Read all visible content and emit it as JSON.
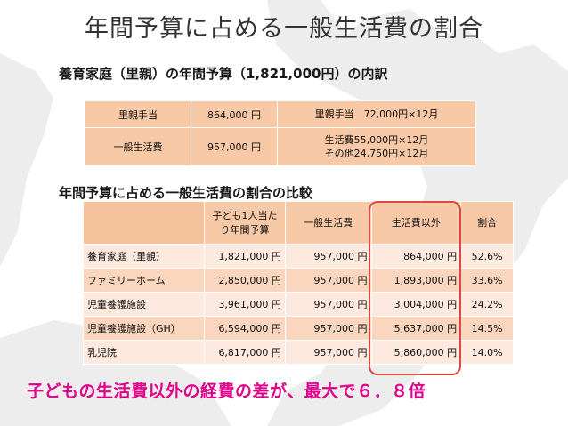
{
  "title": "年間予算に占める一般生活費の割合",
  "section1": {
    "heading": "養育家庭（里親）の年間予算（1,821,000円）の内訳",
    "rows": [
      {
        "label": "里親手当",
        "amount": "864,000 円",
        "detail1": "里親手当　72,000円×12月",
        "detail2": ""
      },
      {
        "label": "一般生活費",
        "amount": "957,000 円",
        "detail1": "生活費55,000円×12月",
        "detail2": "その他24,750円×12月"
      }
    ]
  },
  "section2": {
    "heading": "年間予算に占める一般生活費の割合の比較",
    "headers": {
      "budget_line1": "子ども1人当た",
      "budget_line2": "り年間予算",
      "general": "一般生活費",
      "other": "生活費以外",
      "ratio": "割合"
    },
    "rows": [
      {
        "name": "養育家庭（里親）",
        "budget": "1,821,000 円",
        "general": "957,000 円",
        "other": "864,000 円",
        "ratio": "52.6%"
      },
      {
        "name": "ファミリーホーム",
        "budget": "2,850,000 円",
        "general": "957,000 円",
        "other": "1,893,000 円",
        "ratio": "33.6%"
      },
      {
        "name": "児童養護施設",
        "budget": "3,961,000 円",
        "general": "957,000 円",
        "other": "3,004,000 円",
        "ratio": "24.2%"
      },
      {
        "name": "児童養護施設（GH）",
        "budget": "6,594,000 円",
        "general": "957,000 円",
        "other": "5,637,000 円",
        "ratio": "14.5%"
      },
      {
        "name": "乳児院",
        "budget": "6,817,000 円",
        "general": "957,000 円",
        "other": "5,860,000 円",
        "ratio": "14.0%"
      }
    ]
  },
  "conclusion": "子どもの生活費以外の経費の差が、最大で６．８倍",
  "colors": {
    "title": "#333333",
    "header_cell": "#f8c9a6",
    "row_dark": "#f9d6bd",
    "row_light": "#fde9dd",
    "highlight": "#d94a47",
    "conclusion": "#e0008a",
    "map_land": "#ededed"
  }
}
